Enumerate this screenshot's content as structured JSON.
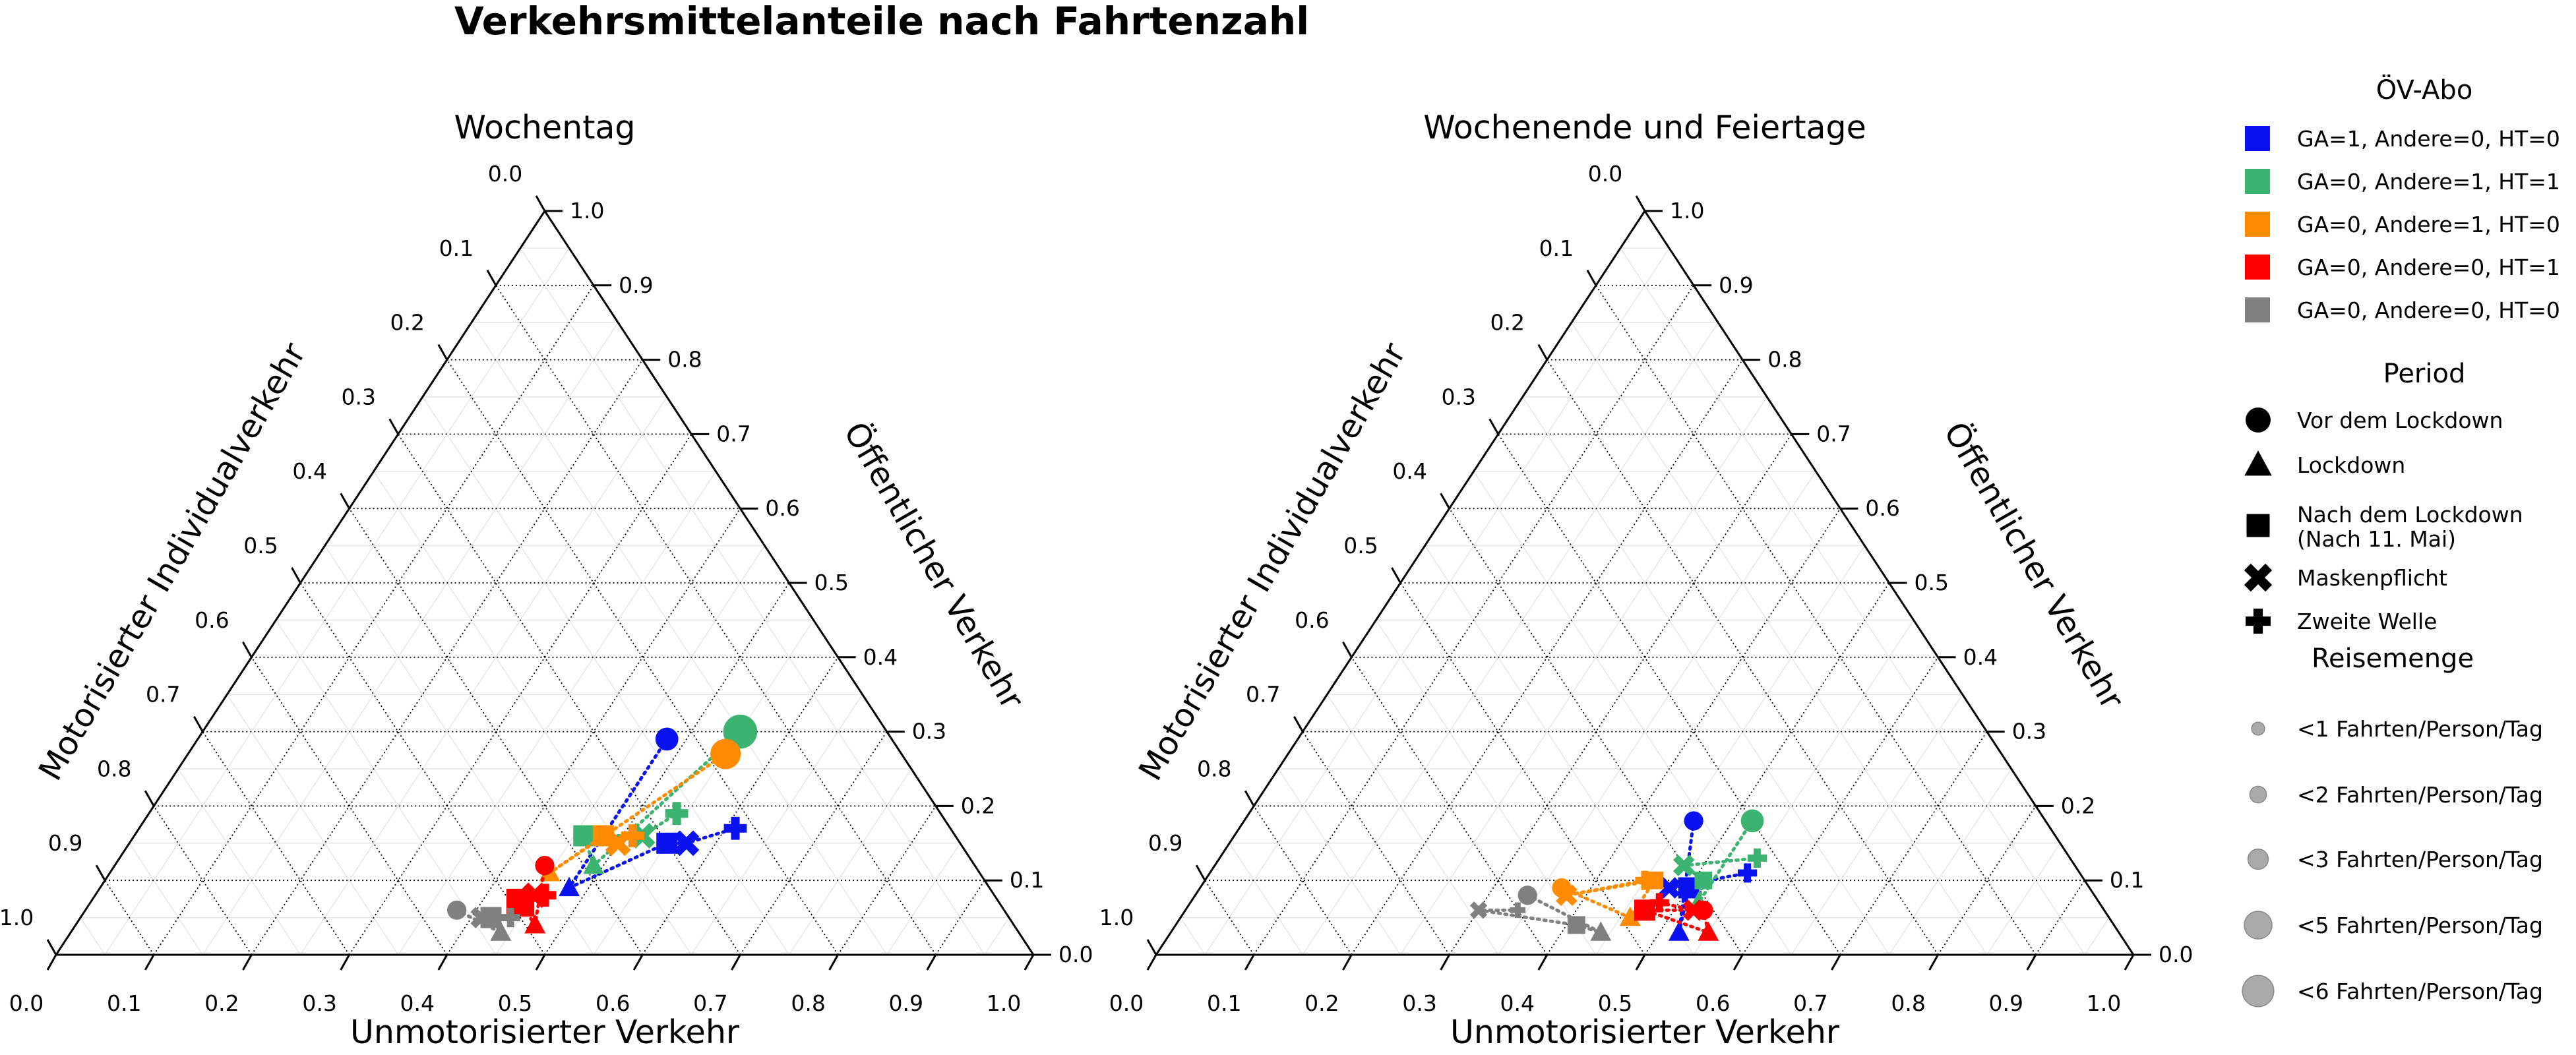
{
  "title": "Verkehrsmittelanteile nach Fahrtenzahl",
  "colors": {
    "GA1_A0_HT0": "#0a12f0",
    "GA0_A1_HT1": "#3cb371",
    "GA0_A1_HT0": "#ff8c00",
    "GA0_A0_HT1": "#ff0000",
    "GA0_A0_HT0": "#808080"
  },
  "axes_labels": {
    "bottom": "Unmotorisierter Verkehr",
    "left": "Motorisierter Individualverkehr",
    "right": "Öffentlicher Verkehr"
  },
  "tick_labels": [
    "0.0",
    "0.1",
    "0.2",
    "0.3",
    "0.4",
    "0.5",
    "0.6",
    "0.7",
    "0.8",
    "0.9",
    "1.0"
  ],
  "legend": {
    "abo_title": "ÖV-Abo",
    "abo": [
      {
        "key": "GA1_A0_HT0",
        "label": "GA=1, Andere=0, HT=0"
      },
      {
        "key": "GA0_A1_HT1",
        "label": "GA=0, Andere=1, HT=1"
      },
      {
        "key": "GA0_A1_HT0",
        "label": "GA=0, Andere=1, HT=0"
      },
      {
        "key": "GA0_A0_HT1",
        "label": "GA=0, Andere=0, HT=1"
      },
      {
        "key": "GA0_A0_HT0",
        "label": "GA=0, Andere=0, HT=0"
      }
    ],
    "period_title": "Period",
    "periods": [
      {
        "marker": "circle",
        "label": "Vor dem Lockdown"
      },
      {
        "marker": "triangle",
        "label": "Lockdown"
      },
      {
        "marker": "square",
        "label": "Nach dem Lockdown\n(Nach 11. Mai)"
      },
      {
        "marker": "x",
        "label": "Maskenpflicht"
      },
      {
        "marker": "plus",
        "label": "Zweite Welle"
      }
    ],
    "size_title": "Reisemenge",
    "sizes": [
      {
        "trips": 1,
        "label": "<1 Fahrten/Person/Tag"
      },
      {
        "trips": 2,
        "label": "<2 Fahrten/Person/Tag"
      },
      {
        "trips": 3,
        "label": "<3 Fahrten/Person/Tag"
      },
      {
        "trips": 5,
        "label": "<5 Fahrten/Person/Tag"
      },
      {
        "trips": 6,
        "label": "<6 Fahrten/Person/Tag"
      }
    ]
  },
  "chart_data": [
    {
      "type": "scatter",
      "subtype": "ternary",
      "title": "Wochentag",
      "xlabel": "Unmotorisierter Verkehr",
      "ylabel": "Motorisierter Individualverkehr",
      "zlabel": "Öffentlicher Verkehr",
      "range": [
        0,
        1
      ],
      "grid": true,
      "series": [
        {
          "name": "GA=1, Andere=0, HT=0",
          "color_key": "GA1_A0_HT0",
          "points": [
            {
              "period": "Vor dem Lockdown",
              "marker": "circle",
              "unmot": 0.48,
              "oev": 0.29,
              "trips": 3
            },
            {
              "period": "Lockdown",
              "marker": "triangle",
              "unmot": 0.48,
              "oev": 0.09,
              "trips": 2
            },
            {
              "period": "Nach dem Lockdown",
              "marker": "square",
              "unmot": 0.55,
              "oev": 0.15,
              "trips": 3
            },
            {
              "period": "Maskenpflicht",
              "marker": "x",
              "unmot": 0.57,
              "oev": 0.15,
              "trips": 3
            },
            {
              "period": "Zweite Welle",
              "marker": "plus",
              "unmot": 0.61,
              "oev": 0.17,
              "trips": 3
            }
          ]
        },
        {
          "name": "GA=0, Andere=1, HT=1",
          "color_key": "GA0_A1_HT1",
          "points": [
            {
              "period": "Vor dem Lockdown",
              "marker": "circle",
              "unmot": 0.55,
              "oev": 0.3,
              "trips": 6
            },
            {
              "period": "Lockdown",
              "marker": "triangle",
              "unmot": 0.49,
              "oev": 0.12,
              "trips": 2
            },
            {
              "period": "Nach dem Lockdown",
              "marker": "square",
              "unmot": 0.46,
              "oev": 0.16,
              "trips": 3
            },
            {
              "period": "Maskenpflicht",
              "marker": "x",
              "unmot": 0.52,
              "oev": 0.16,
              "trips": 3
            },
            {
              "period": "Zweite Welle",
              "marker": "plus",
              "unmot": 0.54,
              "oev": 0.19,
              "trips": 3
            }
          ]
        },
        {
          "name": "GA=0, Andere=1, HT=0",
          "color_key": "GA0_A1_HT0",
          "points": [
            {
              "period": "Vor dem Lockdown",
              "marker": "circle",
              "unmot": 0.55,
              "oev": 0.27,
              "trips": 5
            },
            {
              "period": "Lockdown",
              "marker": "triangle",
              "unmot": 0.45,
              "oev": 0.11,
              "trips": 2
            },
            {
              "period": "Nach dem Lockdown",
              "marker": "square",
              "unmot": 0.48,
              "oev": 0.16,
              "trips": 3
            },
            {
              "period": "Maskenpflicht",
              "marker": "x",
              "unmot": 0.5,
              "oev": 0.15,
              "trips": 3
            },
            {
              "period": "Zweite Welle",
              "marker": "plus",
              "unmot": 0.51,
              "oev": 0.16,
              "trips": 3
            }
          ]
        },
        {
          "name": "GA=0, Andere=0, HT=1",
          "color_key": "GA0_A0_HT1",
          "points": [
            {
              "period": "Vor dem Lockdown",
              "marker": "circle",
              "unmot": 0.44,
              "oev": 0.12,
              "trips": 2
            },
            {
              "period": "Lockdown",
              "marker": "triangle",
              "unmot": 0.47,
              "oev": 0.04,
              "trips": 2
            },
            {
              "period": "Nach dem Lockdown",
              "marker": "square",
              "unmot": 0.44,
              "oev": 0.07,
              "trips": 5
            },
            {
              "period": "Maskenpflicht",
              "marker": "x",
              "unmot": 0.45,
              "oev": 0.08,
              "trips": 3
            },
            {
              "period": "Zweite Welle",
              "marker": "plus",
              "unmot": 0.46,
              "oev": 0.08,
              "trips": 3
            }
          ]
        },
        {
          "name": "GA=0, Andere=0, HT=0",
          "color_key": "GA0_A0_HT0",
          "points": [
            {
              "period": "Vor dem Lockdown",
              "marker": "circle",
              "unmot": 0.38,
              "oev": 0.06,
              "trips": 2
            },
            {
              "period": "Lockdown",
              "marker": "triangle",
              "unmot": 0.44,
              "oev": 0.03,
              "trips": 2
            },
            {
              "period": "Nach dem Lockdown",
              "marker": "square",
              "unmot": 0.42,
              "oev": 0.05,
              "trips": 3
            },
            {
              "period": "Maskenpflicht",
              "marker": "x",
              "unmot": 0.41,
              "oev": 0.05,
              "trips": 2
            },
            {
              "period": "Zweite Welle",
              "marker": "plus",
              "unmot": 0.44,
              "oev": 0.05,
              "trips": 2
            }
          ]
        }
      ]
    },
    {
      "type": "scatter",
      "subtype": "ternary",
      "title": "Wochenende und Feiertage",
      "xlabel": "Unmotorisierter Verkehr",
      "ylabel": "Motorisierter Individualverkehr",
      "zlabel": "Öffentlicher Verkehr",
      "range": [
        0,
        1
      ],
      "grid": true,
      "series": [
        {
          "name": "GA=1, Andere=0, HT=0",
          "color_key": "GA1_A0_HT0",
          "points": [
            {
              "period": "Vor dem Lockdown",
              "marker": "circle",
              "unmot": 0.46,
              "oev": 0.18,
              "trips": 2
            },
            {
              "period": "Lockdown",
              "marker": "triangle",
              "unmot": 0.52,
              "oev": 0.03,
              "trips": 2
            },
            {
              "period": "Nach dem Lockdown",
              "marker": "square",
              "unmot": 0.5,
              "oev": 0.09,
              "trips": 3
            },
            {
              "period": "Maskenpflicht",
              "marker": "x",
              "unmot": 0.48,
              "oev": 0.09,
              "trips": 2
            },
            {
              "period": "Zweite Welle",
              "marker": "plus",
              "unmot": 0.55,
              "oev": 0.11,
              "trips": 2
            }
          ]
        },
        {
          "name": "GA=0, Andere=1, HT=1",
          "color_key": "GA0_A1_HT1",
          "points": [
            {
              "period": "Vor dem Lockdown",
              "marker": "circle",
              "unmot": 0.52,
              "oev": 0.18,
              "trips": 3
            },
            {
              "period": "Lockdown",
              "marker": "triangle",
              "unmot": 0.52,
              "oev": 0.07,
              "trips": 2
            },
            {
              "period": "Nach dem Lockdown",
              "marker": "square",
              "unmot": 0.51,
              "oev": 0.1,
              "trips": 2
            },
            {
              "period": "Maskenpflicht",
              "marker": "x",
              "unmot": 0.48,
              "oev": 0.12,
              "trips": 2
            },
            {
              "period": "Zweite Welle",
              "marker": "plus",
              "unmot": 0.55,
              "oev": 0.13,
              "trips": 2
            }
          ]
        },
        {
          "name": "GA=0, Andere=1, HT=0",
          "color_key": "GA0_A1_HT0",
          "points": [
            {
              "period": "Vor dem Lockdown",
              "marker": "circle",
              "unmot": 0.37,
              "oev": 0.09,
              "trips": 2
            },
            {
              "period": "Lockdown",
              "marker": "triangle",
              "unmot": 0.46,
              "oev": 0.05,
              "trips": 2
            },
            {
              "period": "Nach dem Lockdown",
              "marker": "square",
              "unmot": 0.46,
              "oev": 0.1,
              "trips": 2
            },
            {
              "period": "Maskenpflicht",
              "marker": "x",
              "unmot": 0.38,
              "oev": 0.08,
              "trips": 2
            },
            {
              "period": "Zweite Welle",
              "marker": "plus",
              "unmot": 0.45,
              "oev": 0.1,
              "trips": 2
            }
          ]
        },
        {
          "name": "GA=0, Andere=0, HT=1",
          "color_key": "GA0_A0_HT1",
          "points": [
            {
              "period": "Vor dem Lockdown",
              "marker": "circle",
              "unmot": 0.53,
              "oev": 0.06,
              "trips": 2
            },
            {
              "period": "Lockdown",
              "marker": "triangle",
              "unmot": 0.55,
              "oev": 0.03,
              "trips": 2
            },
            {
              "period": "Nach dem Lockdown",
              "marker": "square",
              "unmot": 0.47,
              "oev": 0.06,
              "trips": 3
            },
            {
              "period": "Maskenpflicht",
              "marker": "x",
              "unmot": 0.52,
              "oev": 0.06,
              "trips": 2
            },
            {
              "period": "Zweite Welle",
              "marker": "plus",
              "unmot": 0.48,
              "oev": 0.07,
              "trips": 2
            }
          ]
        },
        {
          "name": "GA=0, Andere=0, HT=0",
          "color_key": "GA0_A0_HT0",
          "points": [
            {
              "period": "Vor dem Lockdown",
              "marker": "circle",
              "unmot": 0.34,
              "oev": 0.08,
              "trips": 2
            },
            {
              "period": "Lockdown",
              "marker": "triangle",
              "unmot": 0.44,
              "oev": 0.03,
              "trips": 2
            },
            {
              "period": "Nach dem Lockdown",
              "marker": "square",
              "unmot": 0.41,
              "oev": 0.04,
              "trips": 2
            },
            {
              "period": "Maskenpflicht",
              "marker": "x",
              "unmot": 0.3,
              "oev": 0.06,
              "trips": 1
            },
            {
              "period": "Zweite Welle",
              "marker": "plus",
              "unmot": 0.34,
              "oev": 0.06,
              "trips": 1
            }
          ]
        }
      ]
    }
  ]
}
